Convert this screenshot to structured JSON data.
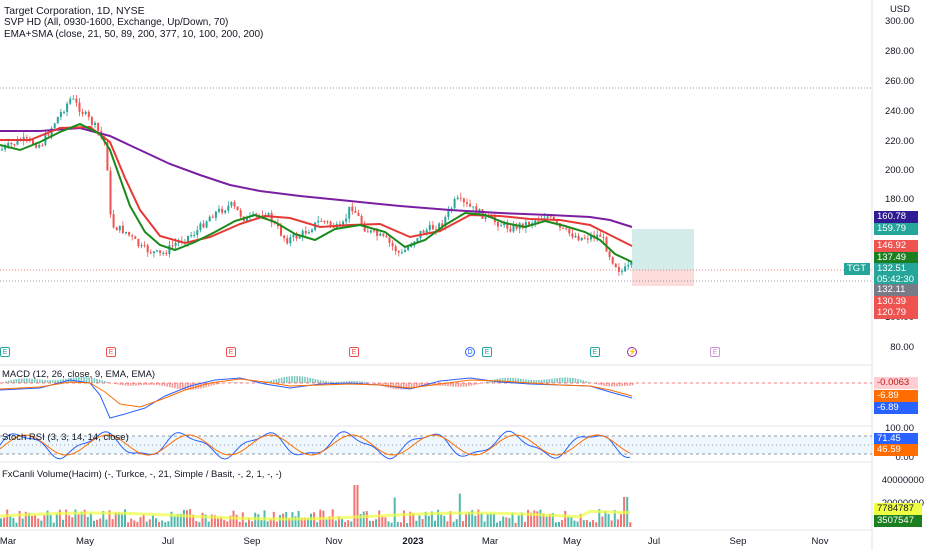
{
  "header": {
    "title": "Target Corporation, 1D, NYSE",
    "line2": "SVP HD (All, 0930-1600, Exchange, Up/Down, 70)",
    "line3": "EMA+SMA (close, 21, 50, 89, 200, 377, 10, 100, 200, 200)"
  },
  "price_axis": {
    "currency": "USD",
    "ticks": [
      "300.00",
      "280.00",
      "260.00",
      "240.00",
      "220.00",
      "200.00",
      "180.00",
      "100.00",
      "80.00"
    ],
    "symbol_tag": "TGT",
    "tags": [
      {
        "text": "160.78",
        "color": "#311b92"
      },
      {
        "text": "159.79",
        "color": "#26a69a"
      },
      {
        "text": "146.92",
        "color": "#ef5350"
      },
      {
        "text": "137.49",
        "color": "#1b7f1f"
      },
      {
        "text": "132.51",
        "color": "#26a69a"
      },
      {
        "text": "05:42:30",
        "color": "#26a69a"
      },
      {
        "text": "132.11",
        "color": "#787b86"
      },
      {
        "text": "130.39",
        "color": "#ef5350"
      },
      {
        "text": "120.79",
        "color": "#ef5350"
      }
    ]
  },
  "macd": {
    "label": "MACD (12, 26, close, 9, EMA, EMA)",
    "values": [
      {
        "text": "-0.0063",
        "color": "#ffcdd2",
        "fg": "#b71c1c"
      },
      {
        "text": "-6.89",
        "color": "#ff6d00",
        "fg": "#fff"
      },
      {
        "text": "-6.89",
        "color": "#2962ff",
        "fg": "#fff"
      }
    ]
  },
  "stoch": {
    "label": "Stoch RSI (3, 3, 14, 14, close)",
    "ticks": [
      "100.00",
      "0.00"
    ],
    "values": [
      {
        "text": "71.45",
        "color": "#2962ff",
        "fg": "#fff"
      },
      {
        "text": "46.59",
        "color": "#ff6d00",
        "fg": "#fff"
      }
    ]
  },
  "volume": {
    "label": "FxCanli Volume(Hacim) (-, Turkce, -, 21, Simple / Basit, -, 2, 1, -, -)",
    "ticks": [
      "40000000",
      "20000000"
    ],
    "values": [
      {
        "text": "7784787",
        "color": "#eeff41",
        "fg": "#131722"
      },
      {
        "text": "3507547",
        "color": "#1b7f1f",
        "fg": "#fff"
      }
    ]
  },
  "time_axis": [
    "Mar",
    "May",
    "Jul",
    "Sep",
    "Nov",
    "2023",
    "Mar",
    "May",
    "Jul",
    "Sep",
    "Nov"
  ],
  "events": [
    "E",
    "E",
    "E",
    "E",
    "D",
    "E",
    "E",
    "⚡",
    "E"
  ],
  "chart_data": {
    "type": "candlestick",
    "symbol": "TGT",
    "ema_sma_values": {
      "sma200": 160.78,
      "ema50": 146.92,
      "ema21": 137.49
    },
    "last_price": 132.51,
    "position": {
      "target": 159.79,
      "entry": 130.39,
      "stop": 120.79
    }
  },
  "colors": {
    "up": "#26a69a",
    "down": "#ef5350",
    "ma_long": "#7b1fa2",
    "ma_mid": "#e53935",
    "ma_short": "#1b8a1b"
  }
}
